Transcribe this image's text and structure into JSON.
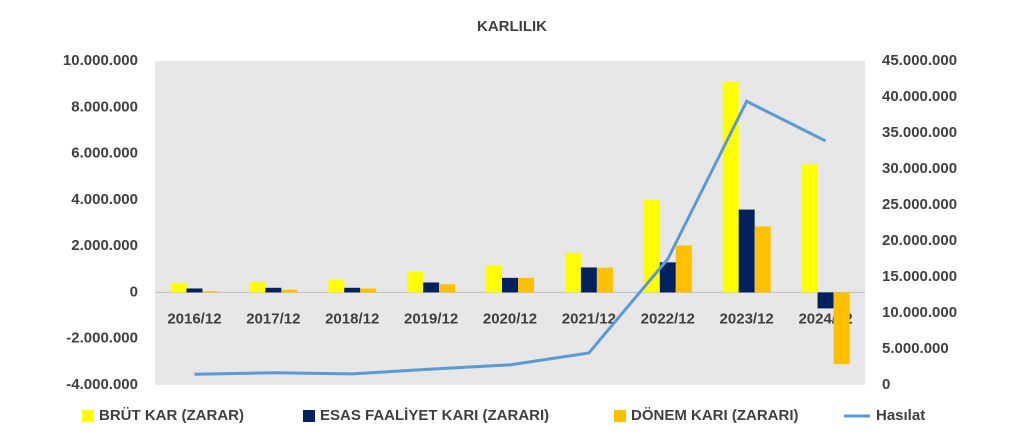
{
  "chart_data": {
    "type": "bar-line",
    "title": "KARLILIK",
    "categories": [
      "2016/12",
      "2017/12",
      "2018/12",
      "2019/12",
      "2020/12",
      "2021/12",
      "2022/12",
      "2023/12",
      "2024/12"
    ],
    "series": [
      {
        "name": "BRÜT KAR (ZARAR)",
        "type": "bar",
        "color": "#ffff00",
        "values": [
          400000,
          450000,
          550000,
          900000,
          1170000,
          1700000,
          4000000,
          9100000,
          5530000
        ]
      },
      {
        "name": "ESAS FAALİYET KARI (ZARARI)",
        "type": "bar",
        "color": "#002060",
        "values": [
          170000,
          200000,
          200000,
          430000,
          630000,
          1080000,
          1300000,
          3580000,
          -690000
        ]
      },
      {
        "name": "DÖNEM KARI (ZARARI)",
        "type": "bar",
        "color": "#ffc000",
        "values": [
          50000,
          120000,
          170000,
          350000,
          630000,
          1070000,
          2030000,
          2850000,
          -3100000
        ]
      },
      {
        "name": "Hasılat",
        "type": "line",
        "axis": "y2",
        "color": "#5b9bd5",
        "values": [
          1500000,
          1700000,
          1550000,
          2200000,
          2800000,
          4450000,
          17500000,
          39400000,
          33900000
        ]
      }
    ],
    "ylim": [
      -4000000,
      10000000
    ],
    "yticks": [
      {
        "value": -4000000,
        "label": "-4.000.000"
      },
      {
        "value": -2000000,
        "label": "-2.000.000"
      },
      0,
      {
        "value": 2000000,
        "label": "2.000.000"
      },
      {
        "value": 4000000,
        "label": "4.000.000"
      },
      {
        "value": 6000000,
        "label": "6.000.000"
      },
      {
        "value": 8000000,
        "label": "8.000.000"
      },
      {
        "value": 10000000,
        "label": "10.000.000"
      }
    ],
    "y2lim": [
      0,
      45000000
    ],
    "y2ticks": [
      0,
      {
        "value": 5000000,
        "label": "5.000.000"
      },
      {
        "value": 10000000,
        "label": "10.000.000"
      },
      {
        "value": 15000000,
        "label": "15.000.000"
      },
      {
        "value": 20000000,
        "label": "20.000.000"
      },
      {
        "value": 25000000,
        "label": "25.000.000"
      },
      {
        "value": 30000000,
        "label": "30.000.000"
      },
      {
        "value": 35000000,
        "label": "35.000.000"
      },
      {
        "value": 40000000,
        "label": "40.000.000"
      },
      {
        "value": 45000000,
        "label": "45.000.000"
      }
    ],
    "grid": false,
    "legend": "bottom",
    "plot_background": "#e7e7e7"
  }
}
